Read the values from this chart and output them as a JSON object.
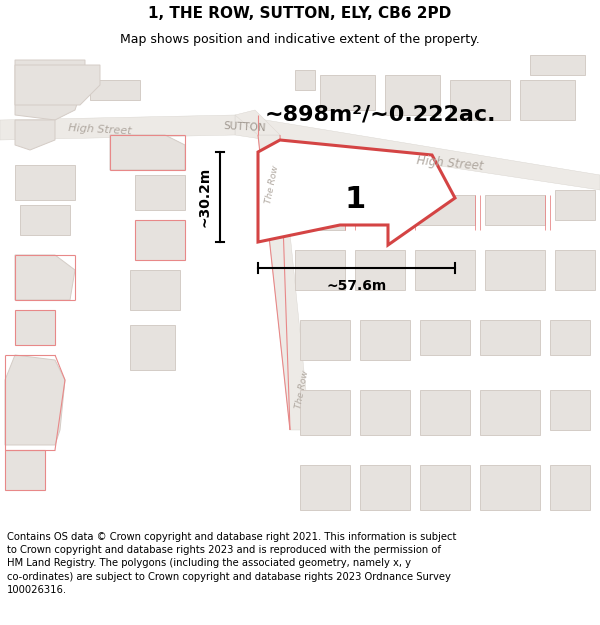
{
  "title": "1, THE ROW, SUTTON, ELY, CB6 2PD",
  "subtitle": "Map shows position and indicative extent of the property.",
  "footer": "Contains OS data © Crown copyright and database right 2021. This information is subject to Crown copyright and database rights 2023 and is reproduced with the permission of HM Land Registry. The polygons (including the associated geometry, namely x, y co-ordinates) are subject to Crown copyright and database rights 2023 Ordnance Survey 100026316.",
  "area_label": "~898m²/~0.222ac.",
  "plot_number": "1",
  "dim_width": "~57.6m",
  "dim_height": "~30.2m",
  "map_bg": "#f7f5f3",
  "building_fill": "#e6e2de",
  "building_edge": "#d4ccc6",
  "road_fill": "#edeae6",
  "road_edge": "#d8d4ce",
  "red_color": "#d44444",
  "red_light": "#e88888",
  "street_color": "#b0a8a0",
  "title_fontsize": 11,
  "subtitle_fontsize": 9,
  "footer_fontsize": 7.2
}
